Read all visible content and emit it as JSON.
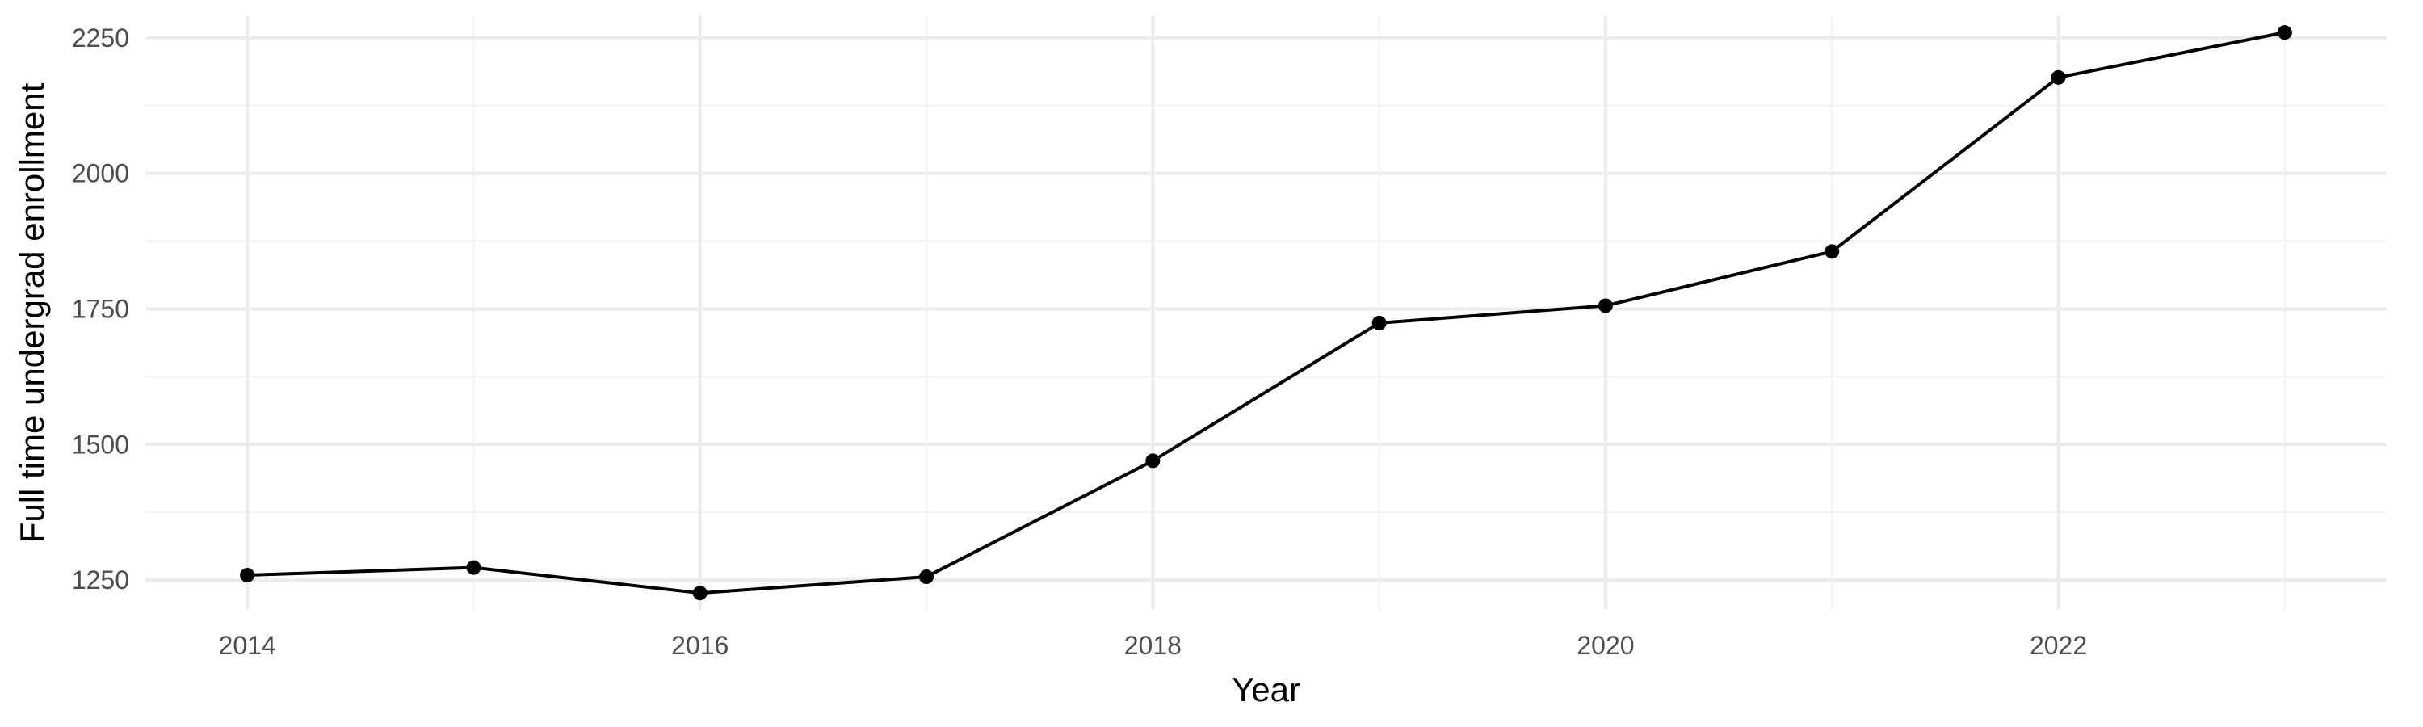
{
  "chart_data": {
    "type": "line",
    "title": "",
    "xlabel": "Year",
    "ylabel": "Full time undergrad enrollment",
    "x": [
      2014,
      2015,
      2016,
      2017,
      2018,
      2019,
      2020,
      2021,
      2022,
      2023
    ],
    "series": [
      {
        "values": [
          1259,
          1273,
          1226,
          1256,
          1470,
          1724,
          1756,
          1856,
          2177,
          2260
        ]
      }
    ],
    "xlim": [
      2013.55,
      2023.45
    ],
    "ylim": [
      1195,
      2290
    ],
    "x_ticks": [
      2014,
      2016,
      2018,
      2020,
      2022
    ],
    "x_tick_labels": [
      "2014",
      "2016",
      "2018",
      "2020",
      "2022"
    ],
    "y_ticks": [
      1250,
      1500,
      1750,
      2000,
      2250
    ],
    "y_tick_labels": [
      "1250",
      "1500",
      "1750",
      "2000",
      "2250"
    ],
    "grid": true,
    "legend": "none",
    "colors": {
      "line": "#000000",
      "grid": "#ebebeb",
      "background": "#ffffff"
    }
  }
}
